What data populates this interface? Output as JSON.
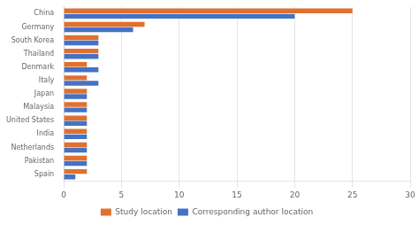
{
  "chart_data": {
    "type": "bar",
    "orientation": "horizontal",
    "categories": [
      "China",
      "Germany",
      "South Korea",
      "Thailand",
      "Denmark",
      "Italy",
      "Japan",
      "Malaysia",
      "United States",
      "India",
      "Netherlands",
      "Pakistan",
      "Spain"
    ],
    "series": [
      {
        "name": "Study location",
        "color": "#E07030",
        "values": [
          25,
          7,
          3,
          3,
          2,
          2,
          2,
          2,
          2,
          2,
          2,
          2,
          2
        ]
      },
      {
        "name": "Corresponding author location",
        "color": "#4472C4",
        "values": [
          20,
          6,
          3,
          3,
          3,
          3,
          2,
          2,
          2,
          2,
          2,
          2,
          1
        ]
      }
    ],
    "xlim": [
      0,
      30
    ],
    "xticks": [
      0,
      5,
      10,
      15,
      20,
      25,
      30
    ],
    "grid": true,
    "legend": "bottom"
  }
}
